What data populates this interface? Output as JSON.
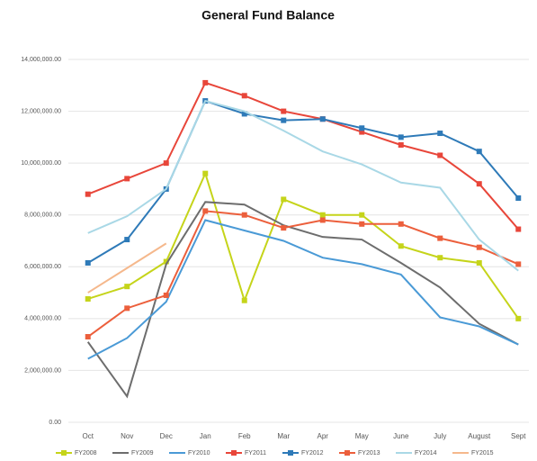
{
  "chart_data": {
    "type": "line",
    "title": "General Fund Balance",
    "categories": [
      "Oct",
      "Nov",
      "Dec",
      "Jan",
      "Feb",
      "Mar",
      "Apr",
      "May",
      "June",
      "July",
      "August",
      "Sept"
    ],
    "ylim": [
      0,
      14000000
    ],
    "yticks": [
      {
        "value": 0,
        "label": "0.00"
      },
      {
        "value": 2000000,
        "label": "2,000,000.00"
      },
      {
        "value": 4000000,
        "label": "4,000,000.00"
      },
      {
        "value": 6000000,
        "label": "6,000,000.00"
      },
      {
        "value": 8000000,
        "label": "8,000,000.00"
      },
      {
        "value": 10000000,
        "label": "10,000,000.00"
      },
      {
        "value": 12000000,
        "label": "12,000,000.00"
      },
      {
        "value": 14000000,
        "label": "14,000,000.00"
      }
    ],
    "grid": true,
    "legend": "bottom",
    "series": [
      {
        "name": "FY2008",
        "color": "#c5d41a",
        "marker": true,
        "values": [
          4760000,
          5240000,
          6200000,
          9600000,
          4700000,
          8600000,
          8000000,
          8000000,
          6800000,
          6350000,
          6150000,
          4000000
        ]
      },
      {
        "name": "FY2009",
        "color": "#6d6d6d",
        "marker": false,
        "values": [
          3100000,
          1000000,
          6100000,
          8500000,
          8400000,
          7600000,
          7150000,
          7050000,
          6150000,
          5200000,
          3800000,
          3000000
        ]
      },
      {
        "name": "FY2010",
        "color": "#4a9ad6",
        "marker": false,
        "values": [
          2450000,
          3250000,
          4650000,
          7800000,
          7400000,
          7000000,
          6350000,
          6100000,
          5700000,
          4050000,
          3700000,
          3000000
        ]
      },
      {
        "name": "FY2011",
        "color": "#e8463a",
        "marker": true,
        "values": [
          8800000,
          9400000,
          10000000,
          13100000,
          12600000,
          12000000,
          11700000,
          11200000,
          10700000,
          10300000,
          9200000,
          7450000
        ]
      },
      {
        "name": "FY2012",
        "color": "#2e7ab8",
        "marker": true,
        "values": [
          6150000,
          7050000,
          9000000,
          12400000,
          11900000,
          11650000,
          11700000,
          11350000,
          11000000,
          11150000,
          10450000,
          8650000
        ]
      },
      {
        "name": "FY2013",
        "color": "#ec5f3c",
        "marker": true,
        "values": [
          3300000,
          4400000,
          4900000,
          8150000,
          8000000,
          7500000,
          7800000,
          7650000,
          7650000,
          7100000,
          6750000,
          6100000
        ]
      },
      {
        "name": "FY2014",
        "color": "#a9d8e6",
        "marker": false,
        "values": [
          7300000,
          7950000,
          9000000,
          12400000,
          12000000,
          11250000,
          10450000,
          9950000,
          9250000,
          9050000,
          7050000,
          5850000
        ]
      },
      {
        "name": "FY2015",
        "color": "#f5b88c",
        "marker": false,
        "values": [
          5000000,
          5950000,
          6900000,
          null,
          null,
          null,
          null,
          null,
          null,
          null,
          null,
          null
        ]
      }
    ]
  }
}
